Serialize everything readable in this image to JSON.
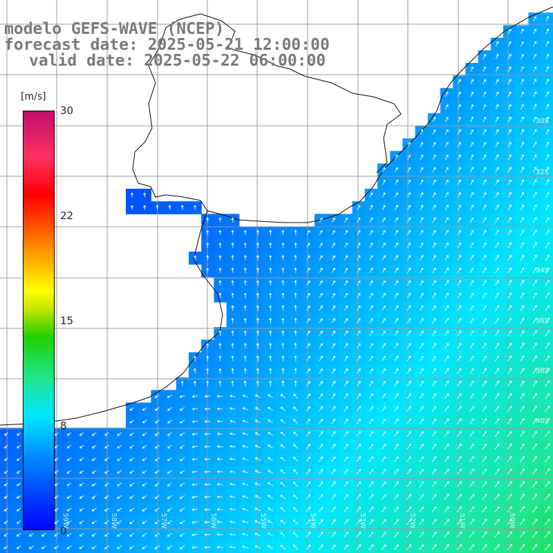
{
  "title": {
    "line1": "modelo GEFS-WAVE (NCEP)",
    "line2": "forecast date: 2025-05-21 12:00:00",
    "line3": "valid date: 2025-05-22 06:00:00"
  },
  "colorbar": {
    "unit": "[m/s]",
    "ticks": [
      {
        "label": "30",
        "value": 30
      },
      {
        "label": "22",
        "value": 22
      },
      {
        "label": "15",
        "value": 15
      },
      {
        "label": "8",
        "value": 8
      },
      {
        "label": "0",
        "value": 0
      }
    ],
    "colors": [
      "#0000ff",
      "#0090ff",
      "#00e6ff",
      "#20e690",
      "#20d000",
      "#c8e600",
      "#ffff00",
      "#ff9000",
      "#ff0000",
      "#ff3060",
      "#c0106a"
    ]
  },
  "map": {
    "variable": "wind speed and direction",
    "land_color": "#ffffff",
    "grid_color": "#9a9a9a",
    "lat_labels": [
      "30S",
      "32S",
      "34S",
      "36S",
      "38S",
      "40S"
    ],
    "lon_labels": [
      "59W",
      "58W",
      "57W",
      "56W",
      "55W",
      "54W",
      "53W",
      "52W",
      "51W",
      "50W"
    ],
    "field_summary": "Wind speeds mostly 1–6 m/s near the coast increasing to 10–12 m/s in the southeast offshore; winds from southwest in north, from northeast in southwest."
  }
}
